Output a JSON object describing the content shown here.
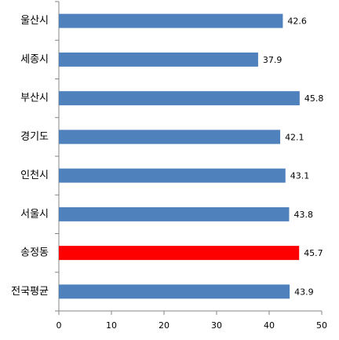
{
  "chart_data": {
    "type": "bar",
    "orientation": "horizontal",
    "categories": [
      "울산시",
      "세종시",
      "부산시",
      "경기도",
      "인천시",
      "서울시",
      "송정동",
      "전국평균"
    ],
    "values": [
      42.6,
      37.9,
      45.8,
      42.1,
      43.1,
      43.8,
      45.7,
      43.9
    ],
    "colors": [
      "#4f81bd",
      "#4f81bd",
      "#4f81bd",
      "#4f81bd",
      "#4f81bd",
      "#4f81bd",
      "#ff0000",
      "#4f81bd"
    ],
    "xlim": [
      0,
      50
    ],
    "xticks": [
      0,
      10,
      20,
      30,
      40,
      50
    ],
    "grid": false
  }
}
